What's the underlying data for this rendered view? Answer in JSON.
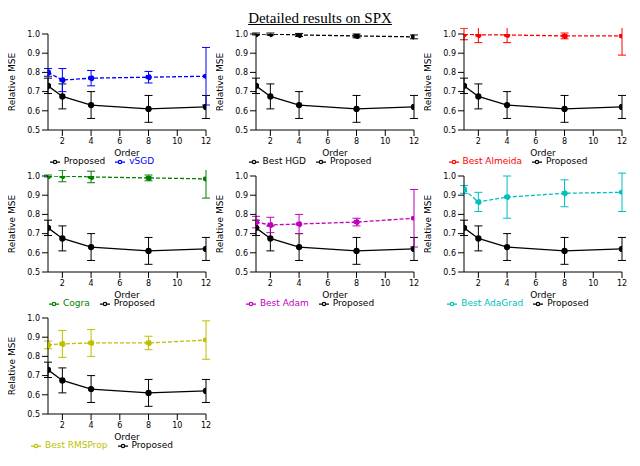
{
  "title": "Detailed results on SPX",
  "chart_data": [
    {
      "type": "line",
      "x": [
        1,
        2,
        4,
        8,
        12
      ],
      "xlabel": "Order",
      "ylabel": "Relative MSE",
      "xlim": [
        1,
        12
      ],
      "xticks": [
        2,
        4,
        6,
        8,
        10,
        12
      ],
      "ylim": [
        0.5,
        1
      ],
      "yticks": [
        0.5,
        0.6,
        0.7,
        0.8,
        0.9,
        {
          "value": 1,
          "label": "1.0"
        }
      ],
      "legend": "bottom",
      "series": [
        {
          "name": "Proposed",
          "color": "#000000",
          "line_style": "solid",
          "marker": "circle",
          "values": [
            0.73,
            0.675,
            0.63,
            0.61,
            0.62
          ],
          "errors": [
            0.04,
            0.065,
            0.07,
            0.07,
            0.06
          ]
        },
        {
          "name": "vSGD",
          "color": "#0000ff",
          "line_style": "dashed",
          "marker": "circle",
          "values": [
            0.8,
            0.76,
            0.77,
            0.775,
            0.78
          ],
          "errors": [
            0.02,
            0.06,
            0.04,
            0.03,
            0.15
          ]
        }
      ]
    },
    {
      "type": "line",
      "x": [
        1,
        2,
        4,
        8,
        12
      ],
      "xlabel": "Order",
      "ylabel": "Relative MSE",
      "xlim": [
        1,
        12
      ],
      "xticks": [
        2,
        4,
        6,
        8,
        10,
        12
      ],
      "ylim": [
        0.5,
        1
      ],
      "yticks": [
        0.5,
        0.6,
        0.7,
        0.8,
        0.9,
        {
          "value": 1,
          "label": "1.0"
        }
      ],
      "legend": "bottom",
      "series": [
        {
          "name": "Proposed",
          "color": "#000000",
          "line_style": "solid",
          "marker": "circle",
          "values": [
            0.73,
            0.675,
            0.63,
            0.61,
            0.62
          ],
          "errors": [
            0.04,
            0.065,
            0.07,
            0.07,
            0.06
          ]
        },
        {
          "name": "Best HGD",
          "color": "#000000",
          "line_style": "dashed",
          "marker": "circle",
          "values": [
            1,
            1,
            0.995,
            0.99,
            0.985
          ],
          "errors": [
            0.005,
            0.005,
            0.008,
            0.01,
            0.01
          ]
        }
      ]
    },
    {
      "type": "line",
      "x": [
        1,
        2,
        4,
        8,
        12
      ],
      "xlabel": "Order",
      "ylabel": "Relative MSE",
      "xlim": [
        1,
        12
      ],
      "xticks": [
        2,
        4,
        6,
        8,
        10,
        12
      ],
      "ylim": [
        0.5,
        1
      ],
      "yticks": [
        0.5,
        0.6,
        0.7,
        0.8,
        0.9,
        {
          "value": 1,
          "label": "1.0"
        }
      ],
      "legend": "bottom",
      "series": [
        {
          "name": "Proposed",
          "color": "#000000",
          "line_style": "solid",
          "marker": "circle",
          "values": [
            0.73,
            0.675,
            0.63,
            0.61,
            0.62
          ],
          "errors": [
            0.04,
            0.065,
            0.07,
            0.07,
            0.06
          ]
        },
        {
          "name": "Best Almeida",
          "color": "#ff0000",
          "line_style": "dashed",
          "marker": "circle",
          "values": [
            1,
            0.995,
            0.995,
            0.99,
            0.99
          ],
          "errors": [
            0.03,
            0.04,
            0.04,
            0.015,
            0.1
          ]
        }
      ]
    },
    {
      "type": "line",
      "x": [
        1,
        2,
        4,
        8,
        12
      ],
      "xlabel": "Order",
      "ylabel": "Relative MSE",
      "xlim": [
        1,
        12
      ],
      "xticks": [
        2,
        4,
        6,
        8,
        10,
        12
      ],
      "ylim": [
        0.5,
        1
      ],
      "yticks": [
        0.5,
        0.6,
        0.7,
        0.8,
        0.9,
        {
          "value": 1,
          "label": "1.0"
        }
      ],
      "legend": "bottom",
      "series": [
        {
          "name": "Proposed",
          "color": "#000000",
          "line_style": "solid",
          "marker": "circle",
          "values": [
            0.73,
            0.675,
            0.63,
            0.61,
            0.62
          ],
          "errors": [
            0.04,
            0.065,
            0.07,
            0.07,
            0.06
          ]
        },
        {
          "name": "Cogra",
          "color": "#008000",
          "line_style": "dashed",
          "marker": "circle",
          "values": [
            1,
            1,
            0.995,
            0.99,
            0.985
          ],
          "errors": [
            0.005,
            0.03,
            0.03,
            0.015,
            0.1
          ]
        }
      ]
    },
    {
      "type": "line",
      "x": [
        1,
        2,
        4,
        8,
        12
      ],
      "xlabel": "Order",
      "ylabel": "Relative MSE",
      "xlim": [
        1,
        12
      ],
      "xticks": [
        2,
        4,
        6,
        8,
        10,
        12
      ],
      "ylim": [
        0.5,
        1
      ],
      "yticks": [
        0.5,
        0.6,
        0.7,
        0.8,
        0.9,
        {
          "value": 1,
          "label": "1.0"
        }
      ],
      "legend": "bottom",
      "series": [
        {
          "name": "Proposed",
          "color": "#000000",
          "line_style": "solid",
          "marker": "circle",
          "values": [
            0.73,
            0.675,
            0.63,
            0.61,
            0.62
          ],
          "errors": [
            0.04,
            0.065,
            0.07,
            0.07,
            0.06
          ]
        },
        {
          "name": "Best Adam",
          "color": "#bf00bf",
          "line_style": "dashed",
          "marker": "circle",
          "values": [
            0.76,
            0.745,
            0.75,
            0.76,
            0.78
          ],
          "errors": [
            0.03,
            0.04,
            0.05,
            0.02,
            0.15
          ]
        }
      ]
    },
    {
      "type": "line",
      "x": [
        1,
        2,
        4,
        8,
        12
      ],
      "xlabel": "Order",
      "ylabel": "Relative MSE",
      "xlim": [
        1,
        12
      ],
      "xticks": [
        2,
        4,
        6,
        8,
        10,
        12
      ],
      "ylim": [
        0.5,
        1
      ],
      "yticks": [
        0.5,
        0.6,
        0.7,
        0.8,
        0.9,
        {
          "value": 1,
          "label": "1.0"
        }
      ],
      "legend": "bottom",
      "series": [
        {
          "name": "Proposed",
          "color": "#000000",
          "line_style": "solid",
          "marker": "circle",
          "values": [
            0.73,
            0.675,
            0.63,
            0.61,
            0.62
          ],
          "errors": [
            0.04,
            0.065,
            0.07,
            0.07,
            0.06
          ]
        },
        {
          "name": "Best AdaGrad",
          "color": "#00bfbf",
          "line_style": "dashed",
          "marker": "circle",
          "values": [
            0.93,
            0.865,
            0.89,
            0.91,
            0.915
          ],
          "errors": [
            0.02,
            0.05,
            0.11,
            0.07,
            0.1
          ]
        }
      ]
    },
    {
      "type": "line",
      "x": [
        1,
        2,
        4,
        8,
        12
      ],
      "xlabel": "Order",
      "ylabel": "Relative MSE",
      "xlim": [
        1,
        12
      ],
      "xticks": [
        2,
        4,
        6,
        8,
        10,
        12
      ],
      "ylim": [
        0.5,
        1
      ],
      "yticks": [
        0.5,
        0.6,
        0.7,
        0.8,
        0.9,
        {
          "value": 1,
          "label": "1.0"
        }
      ],
      "legend": "bottom",
      "series": [
        {
          "name": "Proposed",
          "color": "#000000",
          "line_style": "solid",
          "marker": "circle",
          "values": [
            0.73,
            0.675,
            0.63,
            0.61,
            0.62
          ],
          "errors": [
            0.04,
            0.065,
            0.07,
            0.07,
            0.06
          ]
        },
        {
          "name": "Best RMSProp",
          "color": "#bfbf00",
          "line_style": "dashed",
          "marker": "circle",
          "values": [
            0.86,
            0.865,
            0.87,
            0.87,
            0.885
          ],
          "errors": [
            0.02,
            0.07,
            0.07,
            0.035,
            0.1
          ]
        }
      ]
    }
  ]
}
